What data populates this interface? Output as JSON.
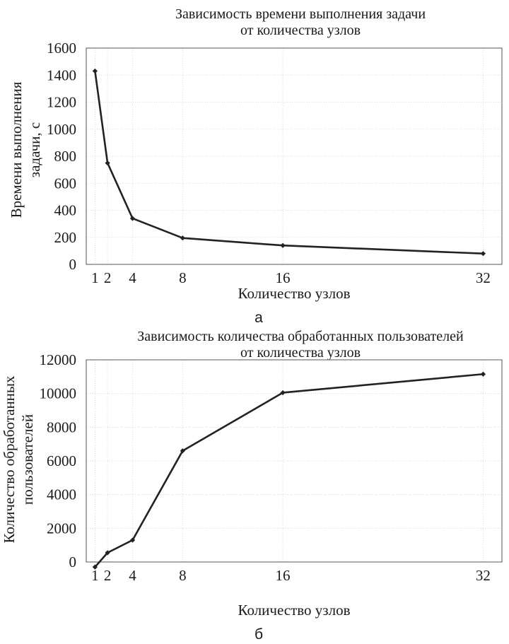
{
  "chart_data": [
    {
      "type": "line",
      "title": "Зависимость времени выполнения задачи\nот количества узлов",
      "xlabel": "Количество узлов",
      "ylabel": "Времени выполнения\nзадачи, с",
      "x_ticks": [
        1,
        2,
        4,
        8,
        16,
        32
      ],
      "y_ticks": [
        0,
        200,
        400,
        600,
        800,
        1000,
        1200,
        1400,
        1600
      ],
      "ylim": [
        0,
        1600
      ],
      "xlim": [
        0.3,
        33.5
      ],
      "grid": true,
      "caption": "а",
      "x": [
        1,
        2,
        4,
        8,
        16,
        32
      ],
      "series": [
        {
          "values": [
            1430,
            750,
            340,
            195,
            140,
            80
          ]
        }
      ]
    },
    {
      "type": "line",
      "title": "Зависимость количества обработанных пользователей\nот количества узлов",
      "xlabel": "Количество узлов",
      "ylabel": "Количество обработанных\nпользователей",
      "x_ticks": [
        1,
        2,
        4,
        8,
        16,
        32
      ],
      "y_ticks": [
        0,
        2000,
        4000,
        6000,
        8000,
        10000,
        12000
      ],
      "ylim": [
        0,
        12000
      ],
      "xlim": [
        0.3,
        33.5
      ],
      "grid": true,
      "caption": "б",
      "x": [
        1,
        2,
        4,
        8,
        16,
        32
      ],
      "series": [
        {
          "values": [
            -300,
            550,
            1300,
            6600,
            10050,
            11150
          ]
        }
      ]
    }
  ]
}
